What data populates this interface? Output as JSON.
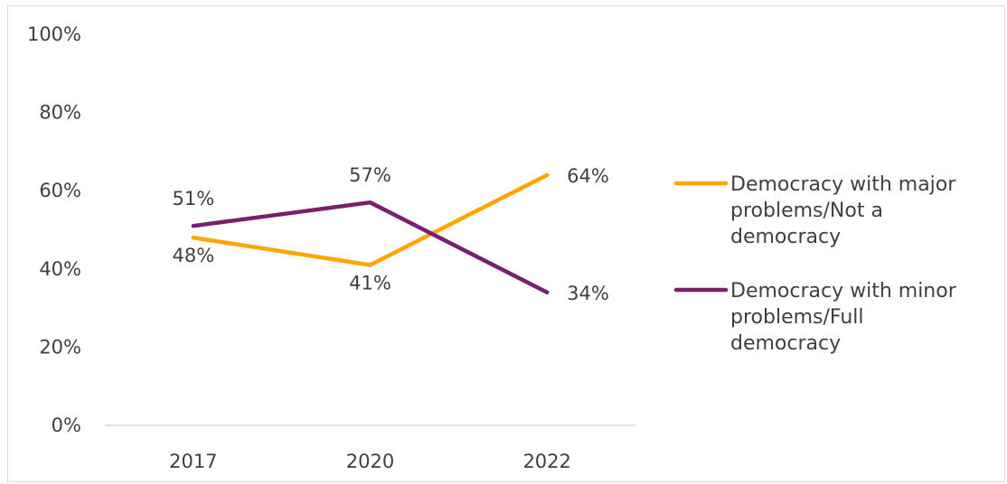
{
  "chart_data": {
    "type": "line",
    "categories": [
      "2017",
      "2020",
      "2022"
    ],
    "series": [
      {
        "name": "Democracy with major problems/Not a democracy",
        "legend_lines": [
          "Democracy with major",
          "problems/Not a",
          "democracy"
        ],
        "values": [
          48,
          41,
          64
        ],
        "labels": [
          "48%",
          "41%",
          "64%"
        ],
        "color": "#FFA600"
      },
      {
        "name": "Democracy with minor problems/Full democracy",
        "legend_lines": [
          "Democracy with minor",
          "problems/Full",
          "democracy"
        ],
        "values": [
          51,
          57,
          34
        ],
        "labels": [
          "51%",
          "57%",
          "34%"
        ],
        "color": "#7A1F6E"
      }
    ],
    "yticks": [
      "0%",
      "20%",
      "40%",
      "60%",
      "80%",
      "100%"
    ],
    "ylim": [
      0,
      100
    ],
    "grid": false,
    "legend_position": "right"
  }
}
